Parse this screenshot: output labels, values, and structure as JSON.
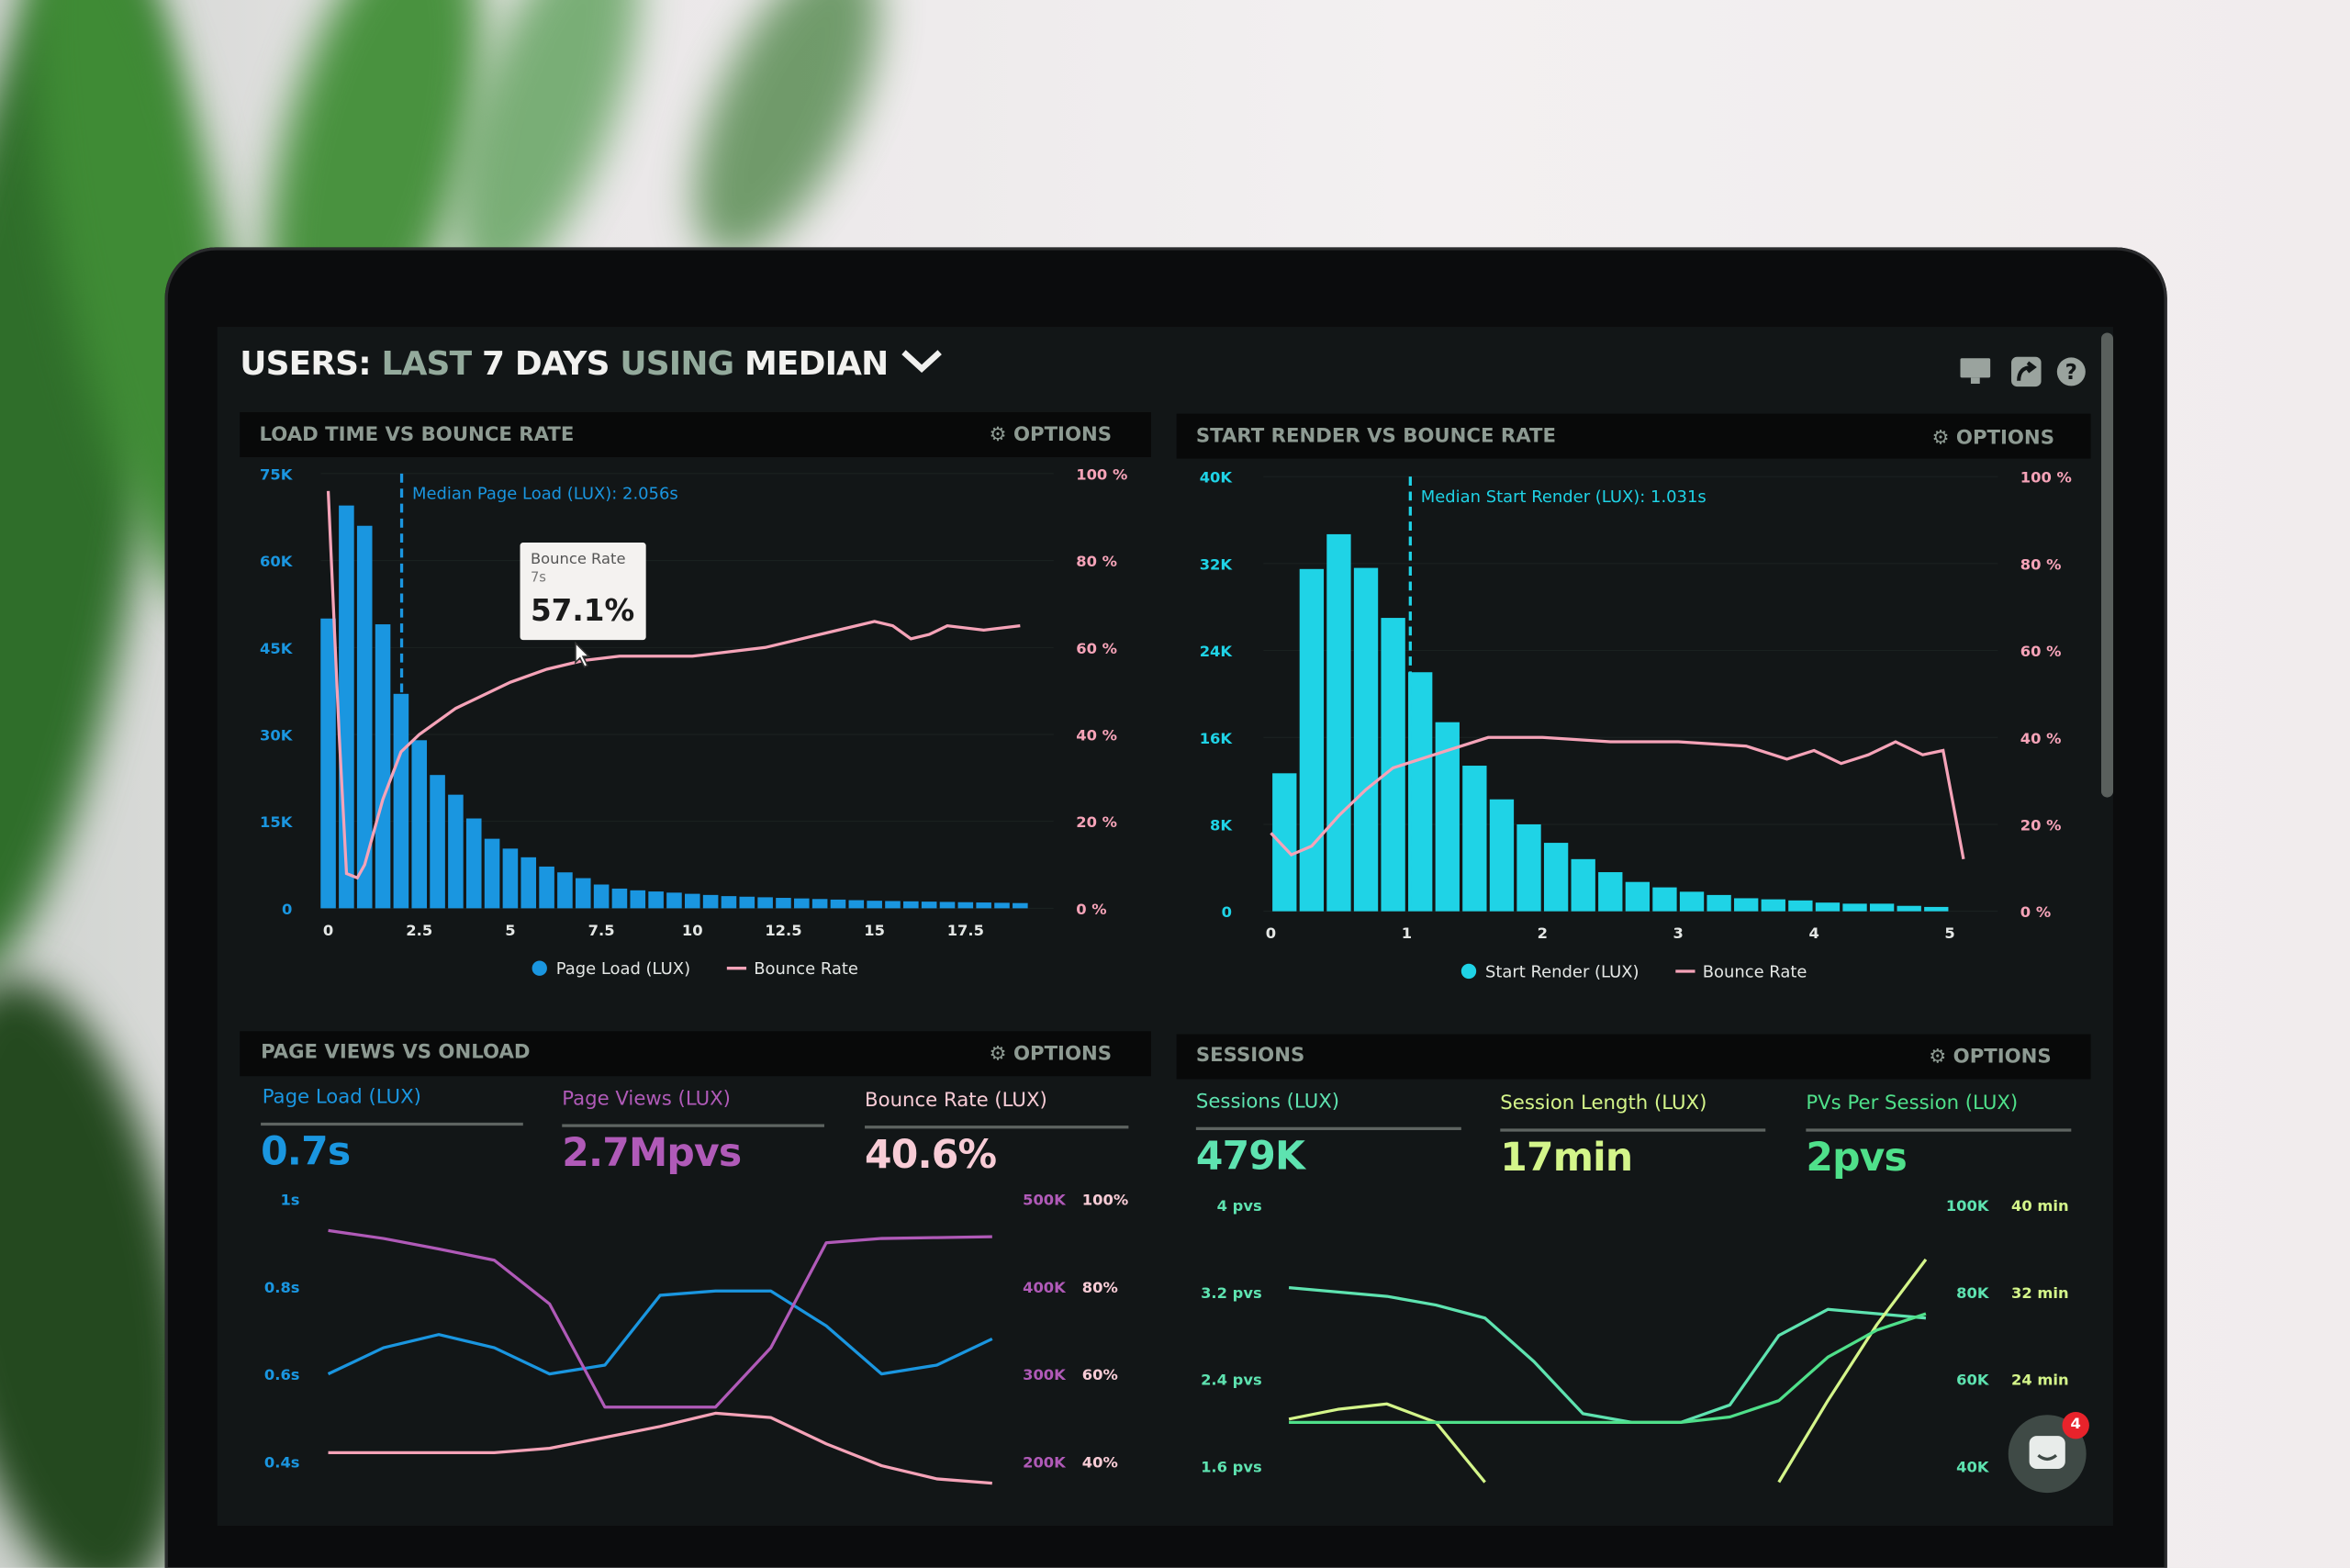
{
  "header": {
    "title_parts": [
      "USERS:",
      "LAST",
      "7 DAYS",
      "USING",
      "MEDIAN"
    ],
    "chevron_icon": "chevron-down-icon",
    "icons": [
      "monitor-icon",
      "share-icon",
      "help-icon"
    ]
  },
  "colors": {
    "page_load": "#1a96e0",
    "start_render": "#1fd3e6",
    "bounce": "#f5a3b8",
    "page_views": "#b05ab8",
    "sessions": "#5ee3b0",
    "session_length": "#d4f58a",
    "pvs_per_session": "#4fe08a",
    "muted": "#8d9a92"
  },
  "panels": {
    "load_time": {
      "title": "LOAD TIME VS BOUNCE RATE",
      "options": "OPTIONS"
    },
    "start_render": {
      "title": "START RENDER VS BOUNCE RATE",
      "options": "OPTIONS"
    },
    "page_views": {
      "title": "PAGE VIEWS VS ONLOAD",
      "options": "OPTIONS",
      "stats": [
        {
          "label": "Page Load (LUX)",
          "value": "0.7s"
        },
        {
          "label": "Page Views (LUX)",
          "value": "2.7Mpvs"
        },
        {
          "label": "Bounce Rate (LUX)",
          "value": "40.6%"
        }
      ]
    },
    "sessions": {
      "title": "SESSIONS",
      "options": "OPTIONS",
      "stats": [
        {
          "label": "Sessions (LUX)",
          "value": "479K"
        },
        {
          "label": "Session Length (LUX)",
          "value": "17min"
        },
        {
          "label": "PVs Per Session (LUX)",
          "value": "2pvs"
        }
      ]
    }
  },
  "tooltip": {
    "label": "Bounce Rate",
    "x": "7s",
    "value": "57.1%"
  },
  "chat": {
    "badge": "4"
  },
  "chart_data": [
    {
      "type": "bar",
      "title": "LOAD TIME VS BOUNCE RATE",
      "annotation": "Median Page Load (LUX): 2.056s",
      "median": 2.056,
      "x_ticks": [
        "0",
        "2.5",
        "5",
        "7.5",
        "10",
        "12.5",
        "15",
        "17.5"
      ],
      "y_ticks": [
        "0",
        "15K",
        "30K",
        "45K",
        "60K",
        "75K"
      ],
      "y2_ticks": [
        "0 %",
        "20 %",
        "40 %",
        "60 %",
        "80 %",
        "100 %"
      ],
      "ylim": [
        0,
        75000
      ],
      "y2lim": [
        0,
        100
      ],
      "bin_width": 0.5,
      "legend": [
        "Page Load (LUX)",
        "Bounce Rate"
      ],
      "legend_position": "bottom",
      "bars": {
        "name": "Page Load (LUX)",
        "x": [
          0,
          0.5,
          1,
          1.5,
          2,
          2.5,
          3,
          3.5,
          4,
          4.5,
          5,
          5.5,
          6,
          6.5,
          7,
          7.5,
          8,
          8.5,
          9,
          9.5,
          10,
          10.5,
          11,
          11.5,
          12,
          12.5,
          13,
          13.5,
          14,
          14.5,
          15,
          15.5,
          16,
          16.5,
          17,
          17.5,
          18,
          18.5,
          19
        ],
        "values": [
          50000,
          69500,
          66000,
          49000,
          37000,
          29000,
          23000,
          19600,
          15500,
          12000,
          10300,
          8800,
          7200,
          6200,
          5200,
          4100,
          3400,
          3100,
          2900,
          2700,
          2500,
          2300,
          2100,
          2000,
          1900,
          1800,
          1700,
          1600,
          1500,
          1400,
          1300,
          1250,
          1200,
          1150,
          1100,
          1050,
          1000,
          950,
          900
        ]
      },
      "line": {
        "name": "Bounce Rate",
        "x": [
          0,
          0.3,
          0.5,
          0.8,
          1,
          1.5,
          2,
          2.5,
          3.5,
          5,
          6,
          7,
          8,
          9,
          10,
          11,
          12,
          13,
          14,
          15,
          15.5,
          16,
          16.5,
          17,
          18,
          19
        ],
        "values": [
          96,
          40,
          8,
          7,
          10,
          25,
          36,
          40,
          46,
          52,
          55,
          57,
          58,
          58,
          58,
          59,
          60,
          62,
          64,
          66,
          65,
          62,
          63,
          65,
          64,
          65
        ]
      }
    },
    {
      "type": "bar",
      "title": "START RENDER VS BOUNCE RATE",
      "annotation": "Median Start Render (LUX): 1.031s",
      "median": 1.031,
      "x_ticks": [
        "0",
        "1",
        "2",
        "3",
        "4",
        "5"
      ],
      "y_ticks": [
        "0",
        "8K",
        "16K",
        "24K",
        "32K",
        "40K"
      ],
      "y2_ticks": [
        "0 %",
        "20 %",
        "40 %",
        "60 %",
        "80 %",
        "100 %"
      ],
      "ylim": [
        0,
        40000
      ],
      "y2lim": [
        0,
        100
      ],
      "bin_width": 0.2,
      "legend": [
        "Start Render (LUX)",
        "Bounce Rate"
      ],
      "legend_position": "bottom",
      "bars": {
        "name": "Start Render (LUX)",
        "x": [
          0.1,
          0.3,
          0.5,
          0.7,
          0.9,
          1.1,
          1.3,
          1.5,
          1.7,
          1.9,
          2.1,
          2.3,
          2.5,
          2.7,
          2.9,
          3.1,
          3.3,
          3.5,
          3.7,
          3.9,
          4.1,
          4.3,
          4.5,
          4.7,
          4.9
        ],
        "values": [
          12700,
          31500,
          34700,
          31600,
          27000,
          22000,
          17400,
          13400,
          10300,
          8000,
          6300,
          4800,
          3600,
          2700,
          2200,
          1800,
          1500,
          1200,
          1100,
          1000,
          800,
          700,
          700,
          500,
          400
        ]
      },
      "line": {
        "name": "Bounce Rate",
        "x": [
          0,
          0.15,
          0.3,
          0.5,
          0.7,
          0.9,
          1.1,
          1.3,
          1.6,
          2,
          2.5,
          3,
          3.5,
          3.8,
          4,
          4.2,
          4.4,
          4.6,
          4.8,
          4.95,
          5.1
        ],
        "values": [
          18,
          13,
          15,
          22,
          28,
          33,
          35,
          37,
          40,
          40,
          39,
          39,
          38,
          35,
          37,
          34,
          36,
          39,
          36,
          37,
          12
        ]
      }
    },
    {
      "type": "line",
      "title": "PAGE VIEWS VS ONLOAD",
      "y_ticks": [
        "1s",
        "0.8s",
        "0.6s",
        "0.4s"
      ],
      "y2_ticks": [
        "500K",
        "400K",
        "300K",
        "200K"
      ],
      "y3_ticks": [
        "100%",
        "80%",
        "60%",
        "40%"
      ],
      "series": [
        {
          "name": "Page Load (LUX)",
          "axis": "s",
          "ylim": [
            0.4,
            1.0
          ],
          "values": [
            0.6,
            0.66,
            0.69,
            0.66,
            0.6,
            0.62,
            0.78,
            0.79,
            0.79,
            0.71,
            0.6,
            0.62,
            0.68
          ]
        },
        {
          "name": "Page Views (LUX)",
          "axis": "K",
          "ylim": [
            200,
            500
          ],
          "values": [
            464,
            455,
            443,
            430,
            380,
            262,
            262,
            262,
            330,
            450,
            455,
            456,
            457
          ]
        },
        {
          "name": "Bounce Rate (LUX)",
          "axis": "%",
          "ylim": [
            40,
            100
          ],
          "values": [
            42,
            42,
            42,
            42,
            43,
            45.5,
            48,
            51,
            50,
            44,
            39,
            36,
            35
          ]
        }
      ]
    },
    {
      "type": "line",
      "title": "SESSIONS",
      "y_ticks": [
        "4 pvs",
        "3.2 pvs",
        "2.4 pvs",
        "1.6 pvs"
      ],
      "y2_ticks": [
        "100K",
        "80K",
        "60K",
        "40K"
      ],
      "y3_ticks": [
        "40 min",
        "32 min",
        "24 min"
      ],
      "series": [
        {
          "name": "Sessions (LUX)",
          "ylim": [
            40,
            100
          ],
          "values": [
            81,
            80,
            79,
            77,
            74,
            64,
            52,
            50,
            50,
            54,
            70,
            76,
            75,
            74
          ]
        },
        {
          "name": "Session Length (LUX)",
          "ylim": [
            16,
            40
          ],
          "values": [
            20.3,
            21.2,
            21.7,
            20,
            14.5,
            null,
            null,
            null,
            null,
            null,
            14.5,
            22,
            29,
            35
          ]
        },
        {
          "name": "PVs Per Session (LUX)",
          "ylim": [
            1.6,
            4
          ],
          "values": [
            2.0,
            2.0,
            2.0,
            2.0,
            2.0,
            2.0,
            2.0,
            2.0,
            2.0,
            2.05,
            2.2,
            2.6,
            2.85,
            3.0
          ]
        }
      ]
    }
  ]
}
